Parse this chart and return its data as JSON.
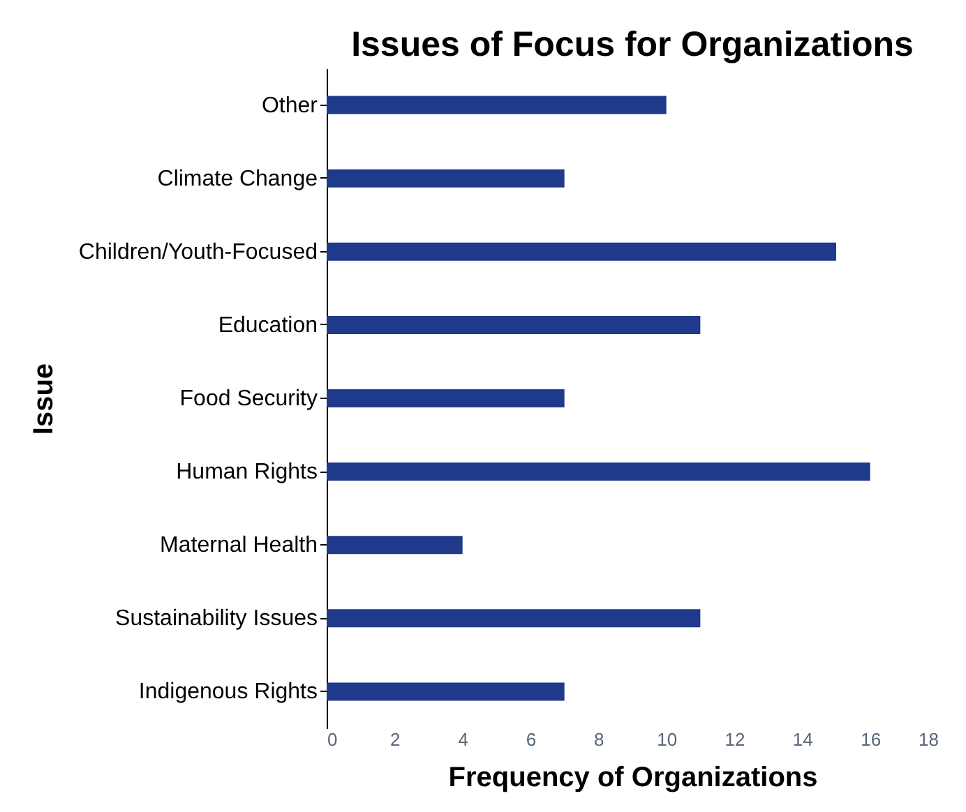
{
  "chart_data": {
    "type": "bar",
    "orientation": "horizontal",
    "title": "Issues of Focus for Organizations",
    "xlabel": "Frequency of Organizations",
    "ylabel": "Issue",
    "categories": [
      "Other",
      "Climate Change",
      "Children/Youth-Focused",
      "Education",
      "Food Security",
      "Human Rights",
      "Maternal Health",
      "Sustainability Issues",
      "Indigenous Rights"
    ],
    "values": [
      10,
      7,
      15,
      11,
      7,
      16,
      4,
      11,
      7
    ],
    "color": "#1f3a8a",
    "xlim": [
      0,
      18
    ],
    "xticks": [
      0,
      2,
      4,
      6,
      8,
      10,
      12,
      14,
      16,
      18
    ],
    "grid": false
  }
}
